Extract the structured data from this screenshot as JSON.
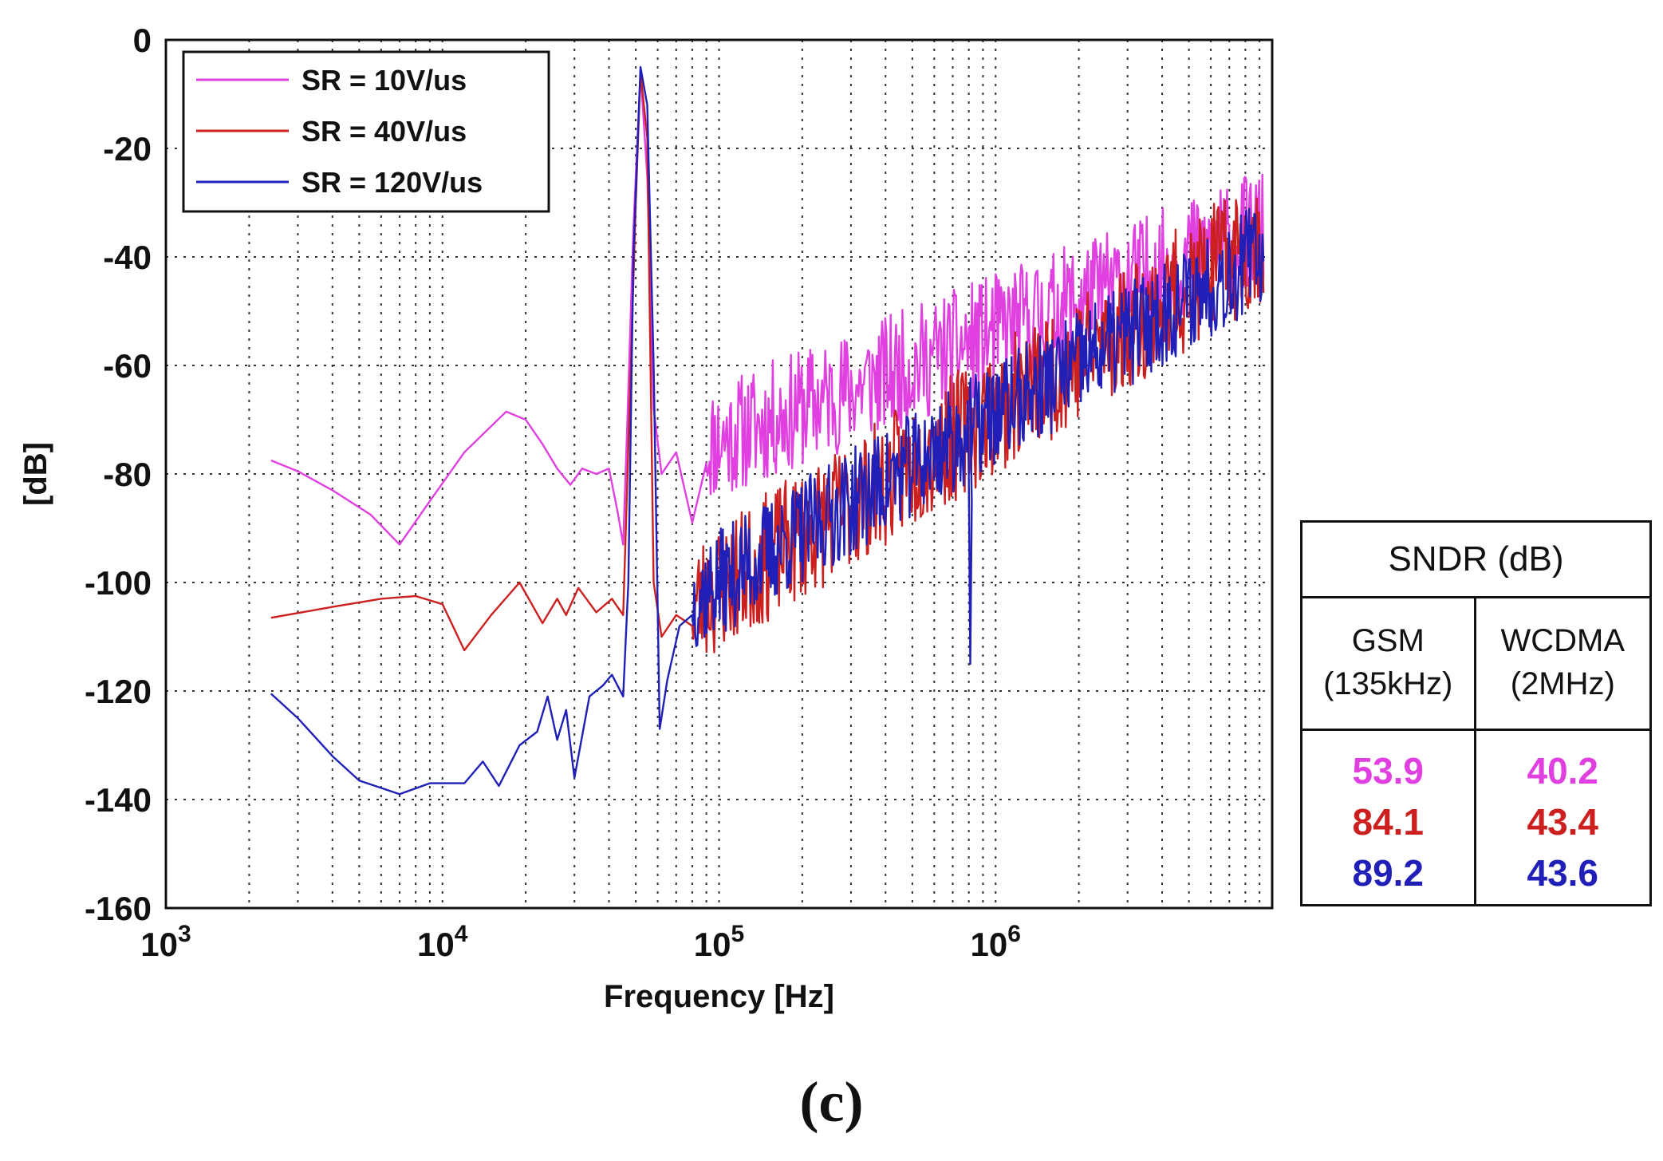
{
  "chart_data": {
    "type": "line",
    "title": "",
    "xlabel": "Frequency [Hz]",
    "ylabel": "[dB]",
    "xscale": "log",
    "xlim": [
      1000,
      10000000
    ],
    "ylim": [
      -160,
      0
    ],
    "grid": true,
    "legend_position": "top-left",
    "x_ticks": [
      {
        "base": "10",
        "exp": "3"
      },
      {
        "base": "10",
        "exp": "4"
      },
      {
        "base": "10",
        "exp": "5"
      },
      {
        "base": "10",
        "exp": "6"
      }
    ],
    "y_ticks": [
      "0",
      "-20",
      "-40",
      "-60",
      "-80",
      "-100",
      "-120",
      "-140",
      "-160"
    ],
    "series": [
      {
        "name": "SR = 10V/us",
        "color": "#e040e0",
        "points": [
          [
            2400,
            -77.5
          ],
          [
            3000,
            -79.5
          ],
          [
            4000,
            -83
          ],
          [
            5500,
            -87.5
          ],
          [
            7000,
            -93
          ],
          [
            9000,
            -85
          ],
          [
            12000,
            -76
          ],
          [
            17000,
            -68.5
          ],
          [
            20000,
            -70
          ],
          [
            23000,
            -74.5
          ],
          [
            26000,
            -79
          ],
          [
            29000,
            -82
          ],
          [
            32000,
            -79
          ],
          [
            36000,
            -80
          ],
          [
            40000,
            -79
          ],
          [
            43000,
            -87
          ],
          [
            45000,
            -93
          ],
          [
            46500,
            -72
          ],
          [
            49000,
            -35
          ],
          [
            52000,
            -6
          ],
          [
            55000,
            -25
          ],
          [
            58000,
            -68
          ],
          [
            62000,
            -80
          ],
          [
            70000,
            -76
          ],
          [
            80000,
            -89
          ],
          [
            90000,
            -78
          ]
        ],
        "noise": {
          "from": 90000,
          "to": 9300000,
          "count": 520,
          "trend_start": [
            90000,
            -78
          ],
          "trend_end": [
            9300000,
            -38
          ],
          "spread": 10,
          "seed": 11
        }
      },
      {
        "name": "SR = 40V/us",
        "color": "#cc2020",
        "points": [
          [
            2400,
            -106.5
          ],
          [
            4000,
            -104.5
          ],
          [
            6000,
            -103
          ],
          [
            8000,
            -102.5
          ],
          [
            10000,
            -104
          ],
          [
            12000,
            -112.5
          ],
          [
            15000,
            -106
          ],
          [
            19000,
            -100
          ],
          [
            23000,
            -107.5
          ],
          [
            26000,
            -103
          ],
          [
            28000,
            -106
          ],
          [
            31000,
            -101
          ],
          [
            36000,
            -105.5
          ],
          [
            41000,
            -103
          ],
          [
            45000,
            -106
          ],
          [
            47000,
            -75
          ],
          [
            50000,
            -30
          ],
          [
            52000,
            -6
          ],
          [
            55000,
            -18
          ],
          [
            58000,
            -100
          ],
          [
            62000,
            -110
          ],
          [
            70000,
            -106
          ],
          [
            80000,
            -108
          ]
        ],
        "noise": {
          "from": 80000,
          "to": 9300000,
          "count": 520,
          "trend_start": [
            80000,
            -108
          ],
          "trend_end": [
            9300000,
            -40
          ],
          "spread": 11,
          "seed": 23
        }
      },
      {
        "name": "SR = 120V/us",
        "color": "#2020b8",
        "points": [
          [
            2400,
            -120.5
          ],
          [
            3000,
            -125
          ],
          [
            4000,
            -132
          ],
          [
            5000,
            -136.5
          ],
          [
            7000,
            -139
          ],
          [
            9000,
            -137
          ],
          [
            12000,
            -137
          ],
          [
            14000,
            -133
          ],
          [
            16000,
            -137.5
          ],
          [
            19000,
            -130
          ],
          [
            22000,
            -127.5
          ],
          [
            24000,
            -121
          ],
          [
            26000,
            -129
          ],
          [
            28000,
            -123.5
          ],
          [
            30000,
            -136
          ],
          [
            34000,
            -121
          ],
          [
            38000,
            -119
          ],
          [
            41000,
            -117
          ],
          [
            45000,
            -121
          ],
          [
            47000,
            -100
          ],
          [
            49000,
            -40
          ],
          [
            52000,
            -5
          ],
          [
            55000,
            -12
          ],
          [
            58000,
            -60
          ],
          [
            61000,
            -127
          ],
          [
            65000,
            -118
          ],
          [
            72000,
            -108
          ],
          [
            80000,
            -106
          ]
        ],
        "noise": {
          "from": 80000,
          "to": 9300000,
          "count": 560,
          "trend_start": [
            80000,
            -106
          ],
          "trend_end": [
            9300000,
            -42
          ],
          "spread": 9,
          "seed": 37,
          "spike": [
            [
              800000,
              -80
            ],
            [
              810000,
              -115
            ],
            [
              820000,
              -85
            ]
          ]
        }
      }
    ]
  },
  "sndr_table": {
    "title": "SNDR (dB)",
    "columns": [
      {
        "header": "GSM",
        "subheader": "(135kHz)",
        "values": [
          "53.9",
          "84.1",
          "89.2"
        ]
      },
      {
        "header": "WCDMA",
        "subheader": "(2MHz)",
        "values": [
          "40.2",
          "43.4",
          "43.6"
        ]
      }
    ],
    "value_colors": [
      "#e040e0",
      "#cc2020",
      "#2020b8"
    ]
  },
  "caption": "(c)"
}
